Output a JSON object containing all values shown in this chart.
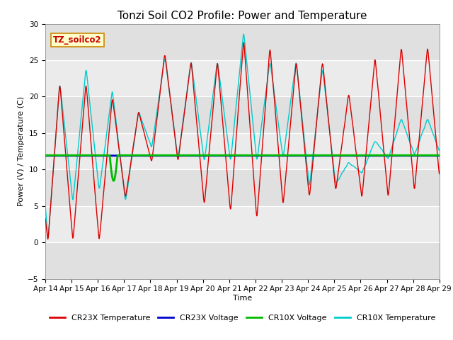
{
  "title": "Tonzi Soil CO2 Profile: Power and Temperature",
  "xlabel": "Time",
  "ylabel": "Power (V) / Temperature (C)",
  "ylim": [
    -5,
    30
  ],
  "yticks": [
    -5,
    0,
    5,
    10,
    15,
    20,
    25,
    30
  ],
  "xlim": [
    0,
    15
  ],
  "background_color": "#ffffff",
  "plot_bg_color": "#e8e8e8",
  "annotation_text": "TZ_soilco2",
  "legend_labels": [
    "CR23X Temperature",
    "CR23X Voltage",
    "CR10X Voltage",
    "CR10X Temperature"
  ],
  "legend_colors": [
    "#dd0000",
    "#0000cc",
    "#00cc00",
    "#00cccc"
  ],
  "cr23x_voltage_value": 11.9,
  "cr10x_voltage_value": 11.95,
  "x_tick_labels": [
    "Apr 14",
    "Apr 15",
    "Apr 16",
    "Apr 17",
    "Apr 18",
    "Apr 19",
    "Apr 20",
    "Apr 21",
    "Apr 22",
    "Apr 23",
    "Apr 24",
    "Apr 25",
    "Apr 26",
    "Apr 27",
    "Apr 28",
    "Apr 29"
  ],
  "title_fontsize": 11,
  "axis_label_fontsize": 8,
  "tick_fontsize": 7.5,
  "band_colors_even": "#e0e0e0",
  "band_colors_odd": "#ebebeb"
}
